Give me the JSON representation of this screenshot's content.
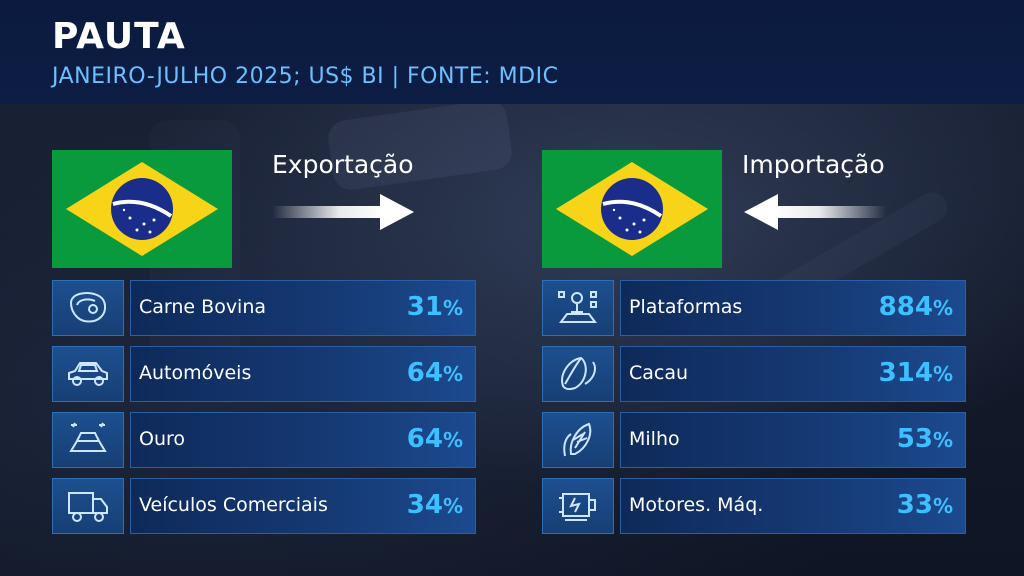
{
  "header": {
    "title": "PAUTA",
    "subtitle": "JANEIRO-JULHO 2025; US$ BI | FONTE: MDIC"
  },
  "export": {
    "label": "Exportação",
    "items": [
      {
        "icon": "steak-icon",
        "label": "Carne Bovina",
        "value": "31",
        "unit": "%"
      },
      {
        "icon": "car-icon",
        "label": "Automóveis",
        "value": "64",
        "unit": "%"
      },
      {
        "icon": "gold-bar-icon",
        "label": "Ouro",
        "value": "64",
        "unit": "%"
      },
      {
        "icon": "truck-icon",
        "label": "Veículos Comerciais",
        "value": "34",
        "unit": "%"
      }
    ]
  },
  "import": {
    "label": "Importação",
    "items": [
      {
        "icon": "platform-icon",
        "label": "Plataformas",
        "value": "884",
        "unit": "%"
      },
      {
        "icon": "cocoa-icon",
        "label": "Cacau",
        "value": "314",
        "unit": "%"
      },
      {
        "icon": "corn-icon",
        "label": "Milho",
        "value": "53",
        "unit": "%"
      },
      {
        "icon": "motor-icon",
        "label": "Motores. Máq.",
        "value": "33",
        "unit": "%"
      }
    ]
  },
  "colors": {
    "accent": "#3ec0ff",
    "subtitle": "#6cc0ff",
    "flag_green": "#0a9a3e",
    "flag_yellow": "#f7d417",
    "flag_blue": "#1a2d8a"
  }
}
